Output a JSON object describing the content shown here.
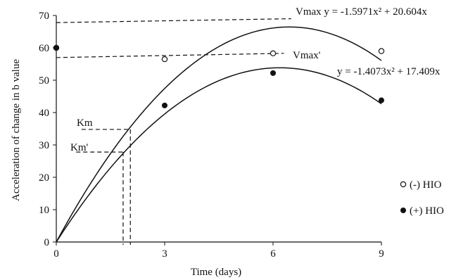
{
  "chart_data": {
    "type": "scatter",
    "xlabel": "Time (days)",
    "ylabel": "Acceleration of change in b value",
    "xlim": [
      0,
      9
    ],
    "ylim": [
      0,
      70
    ],
    "x_ticks": [
      0,
      3,
      6,
      9
    ],
    "y_ticks": [
      0,
      10,
      20,
      30,
      40,
      50,
      60,
      70
    ],
    "grid": false,
    "legend_position": "right",
    "series": [
      {
        "name": "(-) HIO",
        "marker": "open-circle",
        "x": [
          0,
          3,
          6,
          9
        ],
        "y": [
          60,
          56.5,
          58.3,
          59
        ],
        "fit_equation": "Vmax y = -1.5971x² + 20.604x",
        "fit_coefficients": {
          "a": -1.5971,
          "b": 20.604
        }
      },
      {
        "name": "(+) HIO",
        "marker": "filled-circle",
        "x": [
          0,
          3,
          6,
          9
        ],
        "y": [
          60,
          42.2,
          52.2,
          43.8
        ],
        "fit_equation": "y = -1.4073x² + 17.409x",
        "fit_coefficients": {
          "a": -1.4073,
          "b": 17.409
        }
      }
    ],
    "reference_lines": {
      "vmax": {
        "label": "Vmax",
        "x_range": [
          0,
          6.5
        ],
        "y": [
          67.8,
          69
        ]
      },
      "vmax_prime": {
        "label": "Vmax'",
        "x_range": [
          0,
          6.3
        ],
        "y": [
          57,
          58.3
        ]
      },
      "km": {
        "label": "Km",
        "y": 34.8,
        "x": 2.05
      },
      "km_prime": {
        "label": "Km'",
        "y": 27.8,
        "x": 1.85
      }
    },
    "annotations": {
      "vmax_equation": "Vmax y = -1.5971x² + 20.604x",
      "vmax_prime_label": "Vmax'",
      "second_equation": "y = -1.4073x² + 17.409x",
      "km_label": "Km",
      "km_prime_label": "Km'"
    }
  },
  "colors": {
    "ink": "#111111",
    "background": "#ffffff"
  }
}
